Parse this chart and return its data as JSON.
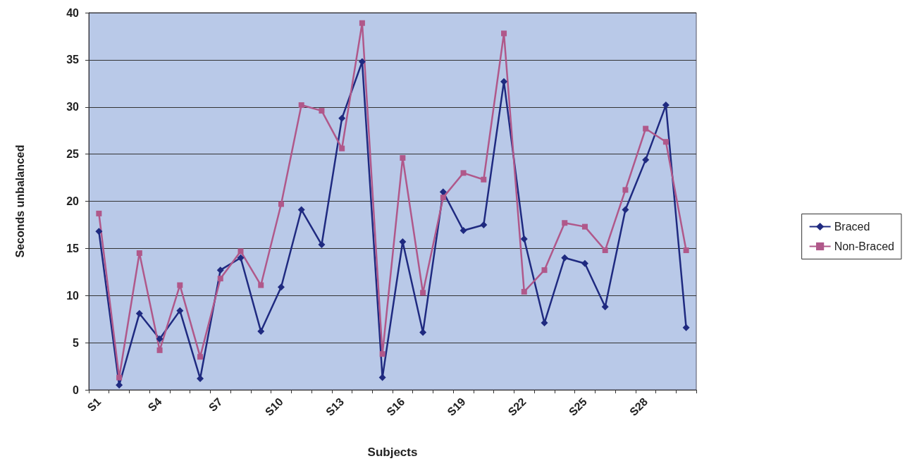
{
  "chart_data": {
    "type": "line",
    "xlabel": "Subjects",
    "ylabel": "Seconds unbalanced",
    "categories": [
      "S1",
      null,
      null,
      "S4",
      null,
      null,
      "S7",
      null,
      null,
      "S10",
      null,
      null,
      "S13",
      null,
      null,
      "S16",
      null,
      null,
      "S19",
      null,
      null,
      "S22",
      null,
      null,
      "S25",
      null,
      null,
      "S28",
      null,
      null
    ],
    "series": [
      {
        "name": "Braced",
        "color": "#1f2a80",
        "marker": "diamond",
        "values": [
          16.8,
          0.5,
          8.1,
          5.4,
          8.4,
          1.2,
          12.7,
          14.0,
          6.2,
          10.9,
          19.1,
          15.4,
          28.8,
          34.8,
          1.3,
          15.7,
          6.1,
          21.0,
          16.9,
          17.5,
          32.7,
          16.0,
          7.1,
          14.0,
          13.4,
          8.8,
          19.1,
          24.4,
          30.2,
          6.6
        ]
      },
      {
        "name": "Non-Braced",
        "color": "#b0588a",
        "marker": "square",
        "values": [
          18.7,
          1.3,
          14.5,
          4.2,
          11.1,
          3.5,
          11.8,
          14.7,
          11.1,
          19.7,
          30.2,
          29.6,
          25.6,
          38.9,
          3.8,
          24.6,
          10.3,
          20.4,
          23.0,
          22.3,
          37.8,
          10.4,
          12.7,
          17.7,
          17.3,
          14.8,
          21.2,
          27.7,
          26.3,
          14.8
        ]
      }
    ],
    "ylim": [
      0,
      40
    ],
    "yticks": [
      0,
      5,
      10,
      15,
      20,
      25,
      30,
      35,
      40
    ],
    "grid": "y",
    "legend": "right",
    "line_style": "solid"
  }
}
